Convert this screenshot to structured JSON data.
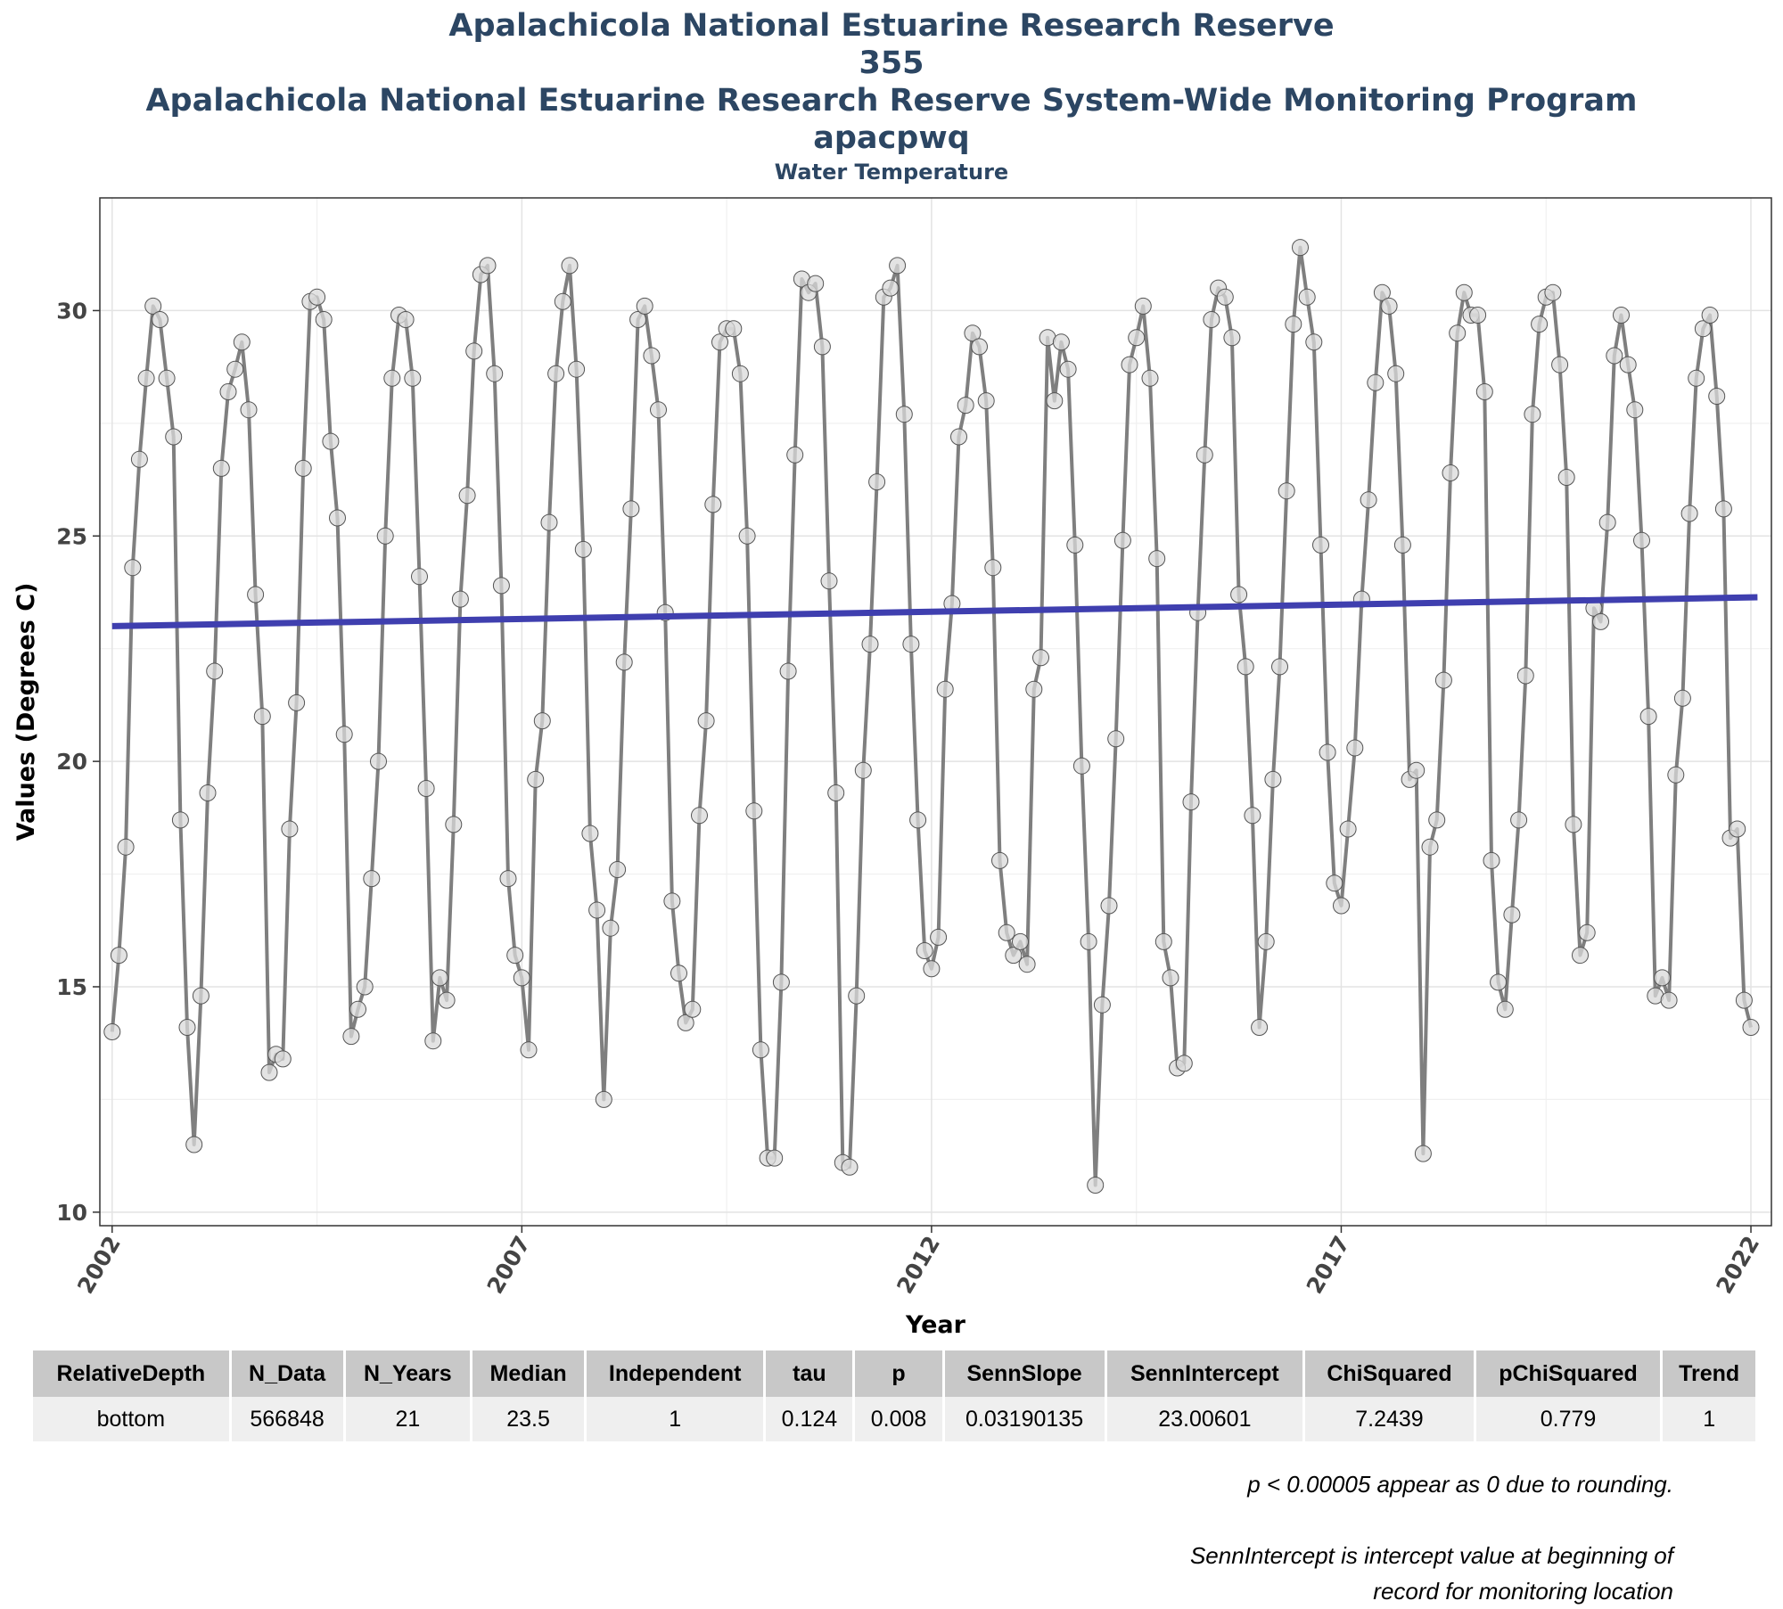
{
  "title_lines": [
    "Apalachicola National Estuarine Research Reserve",
    "355",
    "Apalachicola National Estuarine Research Reserve System-Wide Monitoring Program",
    "apacpwq"
  ],
  "subtitle": "Water Temperature",
  "chart_data": {
    "type": "line",
    "xlabel": "Year",
    "ylabel": "Values (Degrees C)",
    "xlim": [
      2001.85,
      2022.25
    ],
    "ylim": [
      9.7,
      32.5
    ],
    "x_ticks": [
      2002,
      2007,
      2012,
      2017,
      2022
    ],
    "y_ticks": [
      10,
      15,
      20,
      25,
      30
    ],
    "grid": true,
    "series": [
      {
        "role": "monthly-values",
        "color": "#7f7f7f",
        "start_year": 2002,
        "step": "monthly",
        "values": [
          14.0,
          15.7,
          18.1,
          24.3,
          26.7,
          28.5,
          30.1,
          29.8,
          28.5,
          27.2,
          18.7,
          14.1,
          11.5,
          14.8,
          19.3,
          22.0,
          26.5,
          28.2,
          28.7,
          29.3,
          27.8,
          23.7,
          21.0,
          13.1,
          13.5,
          13.4,
          18.5,
          21.3,
          26.5,
          30.2,
          30.3,
          29.8,
          27.1,
          25.4,
          20.6,
          13.9,
          14.5,
          15.0,
          17.4,
          20.0,
          25.0,
          28.5,
          29.9,
          29.8,
          28.5,
          24.1,
          19.4,
          13.8,
          15.2,
          14.7,
          18.6,
          23.6,
          25.9,
          29.1,
          30.8,
          31.0,
          28.6,
          23.9,
          17.4,
          15.7,
          15.2,
          13.6,
          19.6,
          20.9,
          25.3,
          28.6,
          30.2,
          31.0,
          28.7,
          24.7,
          18.4,
          16.7,
          12.5,
          16.3,
          17.6,
          22.2,
          25.6,
          29.8,
          30.1,
          29.0,
          27.8,
          23.3,
          16.9,
          15.3,
          14.2,
          14.5,
          18.8,
          20.9,
          25.7,
          29.3,
          29.6,
          29.6,
          28.6,
          25.0,
          18.9,
          13.6,
          11.2,
          11.2,
          15.1,
          22.0,
          26.8,
          30.7,
          30.4,
          30.6,
          29.2,
          24.0,
          19.3,
          11.1,
          11.0,
          14.8,
          19.8,
          22.6,
          26.2,
          30.3,
          30.5,
          31.0,
          27.7,
          22.6,
          18.7,
          15.8,
          15.4,
          16.1,
          21.6,
          23.5,
          27.2,
          27.9,
          29.5,
          29.2,
          28.0,
          24.3,
          17.8,
          16.2,
          15.7,
          16.0,
          15.5,
          21.6,
          22.3,
          29.4,
          28.0,
          29.3,
          28.7,
          24.8,
          19.9,
          16.0,
          10.6,
          14.6,
          16.8,
          20.5,
          24.9,
          28.8,
          29.4,
          30.1,
          28.5,
          24.5,
          16.0,
          15.2,
          13.2,
          13.3,
          19.1,
          23.3,
          26.8,
          29.8,
          30.5,
          30.3,
          29.4,
          23.7,
          22.1,
          18.8,
          14.1,
          16.0,
          19.6,
          22.1,
          26.0,
          29.7,
          31.4,
          30.3,
          29.3,
          24.8,
          20.2,
          17.3,
          16.8,
          18.5,
          20.3,
          23.6,
          25.8,
          28.4,
          30.4,
          30.1,
          28.6,
          24.8,
          19.6,
          19.8,
          11.3,
          18.1,
          18.7,
          21.8,
          26.4,
          29.5,
          30.4,
          29.9,
          29.9,
          28.2,
          17.8,
          15.1,
          14.5,
          16.6,
          18.7,
          21.9,
          27.7,
          29.7,
          30.3,
          30.4,
          28.8,
          26.3,
          18.6,
          15.7,
          16.2,
          23.4,
          23.1,
          25.3,
          29.0,
          29.9,
          28.8,
          27.8,
          24.9,
          21.0,
          14.8,
          15.2,
          14.7,
          19.7,
          21.4,
          25.5,
          28.5,
          29.6,
          29.9,
          28.1,
          25.6,
          18.3,
          18.5,
          14.7,
          14.1
        ]
      },
      {
        "role": "trend-line",
        "color": "#3f3faf",
        "x": [
          2002,
          2022.08
        ],
        "values": [
          23.0,
          23.64
        ]
      }
    ]
  },
  "table": {
    "headers": [
      "RelativeDepth",
      "N_Data",
      "N_Years",
      "Median",
      "Independent",
      "tau",
      "p",
      "SennSlope",
      "SennIntercept",
      "ChiSquared",
      "pChiSquared",
      "Trend"
    ],
    "rows": [
      [
        "bottom",
        "566848",
        "21",
        "23.5",
        "1",
        "0.124",
        "0.008",
        "0.03190135",
        "23.00601",
        "7.2439",
        "0.779",
        "1"
      ]
    ]
  },
  "notes": {
    "line1": "p < 0.00005 appear as 0 due to rounding.",
    "line2a": "SennIntercept is intercept value at beginning of",
    "line2b": "record for monitoring location"
  }
}
